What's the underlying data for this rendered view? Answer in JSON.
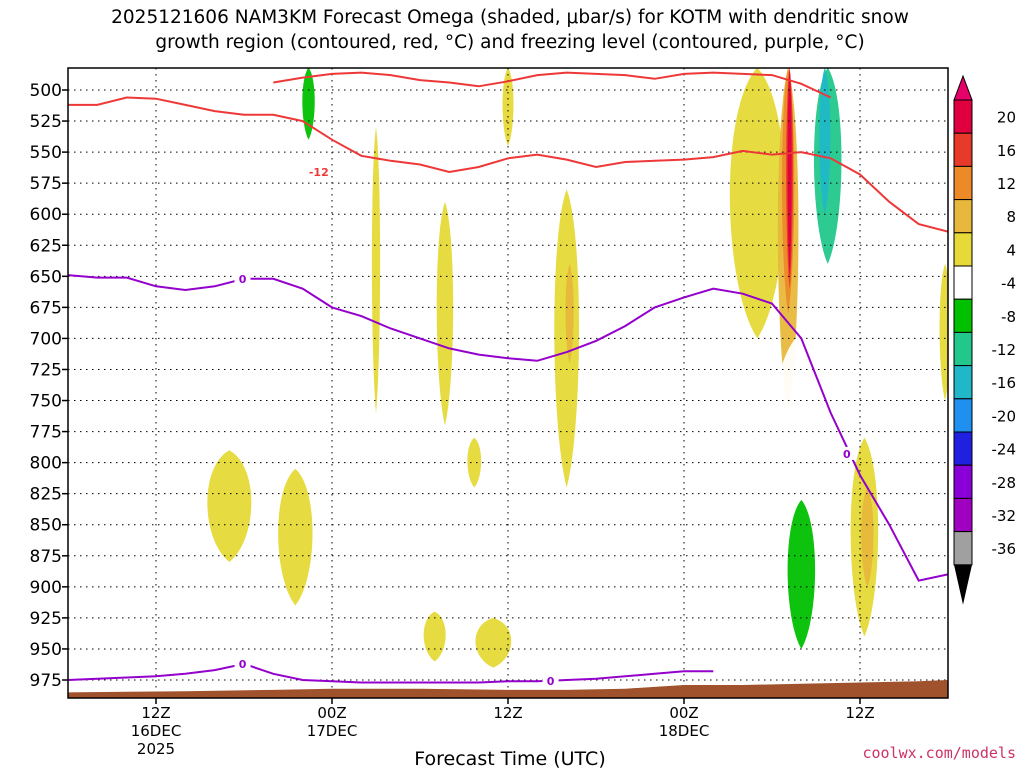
{
  "chart_data": {
    "type": "heatmap",
    "title_line1": "2025121606 NAM3KM Forecast Omega (shaded, μbar/s) for KOTM with dendritic snow",
    "title_line2": "growth region (contoured, red, °C) and freezing level (contoured, purple, °C)",
    "xlabel": "Forecast Time (UTC)",
    "credit": "coolwx.com/models",
    "x_range_hours": [
      6,
      66
    ],
    "x_ticks": [
      {
        "hour": 12,
        "lines": [
          "12Z",
          "16DEC",
          "2025"
        ]
      },
      {
        "hour": 24,
        "lines": [
          "00Z",
          "17DEC"
        ]
      },
      {
        "hour": 36,
        "lines": [
          "12Z"
        ]
      },
      {
        "hour": 48,
        "lines": [
          "00Z",
          "18DEC"
        ]
      },
      {
        "hour": 60,
        "lines": [
          "12Z"
        ]
      }
    ],
    "y_range_mb": [
      989,
      482
    ],
    "y_ticks": [
      "500",
      "525",
      "550",
      "575",
      "600",
      "625",
      "650",
      "675",
      "700",
      "725",
      "750",
      "775",
      "800",
      "825",
      "850",
      "875",
      "900",
      "925",
      "950",
      "975"
    ],
    "colorbar": {
      "labels": [
        "20",
        "16",
        "12",
        "8",
        "4",
        "-4",
        "-8",
        "-12",
        "-16",
        "-20",
        "-24",
        "-28",
        "-32",
        "-36"
      ],
      "colors": [
        "#e00040",
        "#e83a2a",
        "#ec8a28",
        "#e8b83c",
        "#e6d938",
        "#ffffff",
        "#00c000",
        "#22c78c",
        "#20b8c8",
        "#2090f0",
        "#2020e0",
        "#8a00d8",
        "#a000c0",
        "#a0a0a0"
      ]
    },
    "surface_color": "#a0522d",
    "dgz_color": "#ee3838",
    "freezing_color": "#9400cc",
    "contour_labels": [
      {
        "text": "-12",
        "hour": 23.1,
        "mb": 566,
        "color": "#ee3838"
      },
      {
        "text": "0",
        "hour": 17.9,
        "mb": 652,
        "color": "#9400cc"
      },
      {
        "text": "0",
        "hour": 17.9,
        "mb": 962,
        "color": "#9400cc"
      },
      {
        "text": "0",
        "hour": 38.9,
        "mb": 976,
        "color": "#9400cc"
      },
      {
        "text": "0",
        "hour": 59.1,
        "mb": 793,
        "color": "#9400cc"
      }
    ],
    "dgz_upper": {
      "hour": [
        6,
        8,
        10,
        12,
        14,
        16,
        18,
        20,
        22,
        24,
        26,
        28,
        30,
        32,
        34,
        36,
        38,
        40,
        42,
        44,
        46,
        48,
        50,
        52,
        54,
        56,
        58,
        60,
        62,
        64,
        66
      ],
      "mb": [
        512,
        512,
        506,
        507,
        512,
        517,
        520,
        520,
        525,
        540,
        553,
        557,
        560,
        566,
        562,
        555,
        552,
        556,
        562,
        558,
        557,
        556,
        554,
        549,
        552,
        550,
        555,
        568,
        590,
        608,
        614
      ]
    },
    "dgz_upper_top": {
      "hour": [
        20,
        22,
        24,
        26,
        28,
        30,
        32,
        34,
        36,
        38,
        40,
        42,
        44,
        46,
        48,
        50,
        52,
        54,
        56,
        58
      ],
      "mb": [
        494,
        490,
        487,
        486,
        488,
        492,
        494,
        497,
        493,
        488,
        486,
        487,
        488,
        491,
        487,
        486,
        487,
        488,
        495,
        506
      ]
    },
    "freezing_upper": {
      "hour": [
        6,
        8,
        10,
        12,
        14,
        16,
        18,
        20,
        22,
        24,
        26,
        28,
        30,
        32,
        34,
        36,
        38,
        40,
        42,
        44,
        46,
        48,
        50,
        52,
        54,
        56,
        58,
        60,
        62,
        64,
        66
      ],
      "mb": [
        649,
        651,
        651,
        658,
        661,
        658,
        652,
        652,
        660,
        675,
        682,
        692,
        700,
        708,
        713,
        716,
        718,
        711,
        702,
        690,
        675,
        667,
        660,
        664,
        672,
        700,
        760,
        810,
        850,
        895,
        890
      ]
    },
    "freezing_lower": {
      "hour": [
        6,
        8,
        10,
        12,
        14,
        16,
        18,
        20,
        22,
        24,
        26,
        28,
        30,
        32,
        34,
        36,
        38,
        40,
        42,
        44,
        46,
        48,
        50
      ],
      "mb": [
        975,
        974,
        973,
        972,
        970,
        967,
        962,
        970,
        975,
        976,
        977,
        977,
        977,
        977,
        977,
        976,
        976,
        975,
        974,
        972,
        970,
        968,
        968
      ]
    },
    "shading": [
      {
        "hour": 22,
        "mb_top": 482,
        "mb_bot": 620,
        "w": 2.3,
        "omega": -4
      },
      {
        "hour": 22.4,
        "mb_top": 482,
        "mb_bot": 540,
        "w": 0.9,
        "omega": -8
      },
      {
        "hour": 27,
        "mb_top": 530,
        "mb_bot": 760,
        "w": 0.6,
        "omega": 4
      },
      {
        "hour": 30.7,
        "mb_top": 660,
        "mb_bot": 700,
        "w": 0.3,
        "omega": -4
      },
      {
        "hour": 31.7,
        "mb_top": 590,
        "mb_bot": 770,
        "w": 1.2,
        "omega": 4
      },
      {
        "hour": 40,
        "mb_top": 580,
        "mb_bot": 820,
        "w": 1.8,
        "omega": 4
      },
      {
        "hour": 40.2,
        "mb_top": 640,
        "mb_bot": 720,
        "w": 0.6,
        "omega": 8
      },
      {
        "hour": 36,
        "mb_top": 482,
        "mb_bot": 545,
        "w": 0.8,
        "omega": 4
      },
      {
        "hour": 17,
        "mb_top": 790,
        "mb_bot": 880,
        "w": 3.2,
        "omega": 4
      },
      {
        "hour": 21.5,
        "mb_top": 805,
        "mb_bot": 915,
        "w": 2.5,
        "omega": 4
      },
      {
        "hour": 31,
        "mb_top": 920,
        "mb_bot": 960,
        "w": 1.6,
        "omega": 4
      },
      {
        "hour": 35,
        "mb_top": 925,
        "mb_bot": 965,
        "w": 2.6,
        "omega": 4
      },
      {
        "hour": 33.7,
        "mb_top": 780,
        "mb_bot": 820,
        "w": 1.0,
        "omega": 4
      },
      {
        "hour": 26.1,
        "mb_top": 938,
        "mb_bot": 962,
        "w": 0.5,
        "omega": -4
      },
      {
        "hour": 53,
        "mb_top": 482,
        "mb_bot": 700,
        "w": 4.0,
        "omega": 4
      },
      {
        "hour": 55.1,
        "mb_top": 482,
        "mb_bot": 760,
        "w": 1.5,
        "omega": 8
      },
      {
        "hour": 55.1,
        "mb_top": 482,
        "mb_bot": 680,
        "w": 0.9,
        "omega": 12
      },
      {
        "hour": 55.2,
        "mb_top": 482,
        "mb_bot": 660,
        "w": 0.5,
        "omega": 16
      },
      {
        "hour": 55.2,
        "mb_top": 482,
        "mb_bot": 650,
        "w": 0.3,
        "omega": 20
      },
      {
        "hour": 57.9,
        "mb_top": 482,
        "mb_bot": 710,
        "w": 3.4,
        "omega": -4
      },
      {
        "hour": 57.8,
        "mb_top": 482,
        "mb_bot": 640,
        "w": 2.0,
        "omega": -12
      },
      {
        "hour": 57.6,
        "mb_top": 482,
        "mb_bot": 600,
        "w": 0.8,
        "omega": -16
      },
      {
        "hour": 61.7,
        "mb_top": 482,
        "mb_bot": 640,
        "w": 1.2,
        "omega": -4
      },
      {
        "hour": 55.6,
        "mb_top": 700,
        "mb_bot": 960,
        "w": 4.2,
        "omega": -4
      },
      {
        "hour": 56.0,
        "mb_top": 830,
        "mb_bot": 950,
        "w": 2.0,
        "omega": -8
      },
      {
        "hour": 60.3,
        "mb_top": 780,
        "mb_bot": 940,
        "w": 2.0,
        "omega": 4
      },
      {
        "hour": 60.5,
        "mb_top": 820,
        "mb_bot": 900,
        "w": 0.9,
        "omega": 8
      },
      {
        "hour": 65.8,
        "mb_top": 640,
        "mb_bot": 750,
        "w": 0.8,
        "omega": 4
      },
      {
        "hour": 65.3,
        "mb_top": 710,
        "mb_bot": 745,
        "w": 0.3,
        "omega": -4
      }
    ]
  }
}
